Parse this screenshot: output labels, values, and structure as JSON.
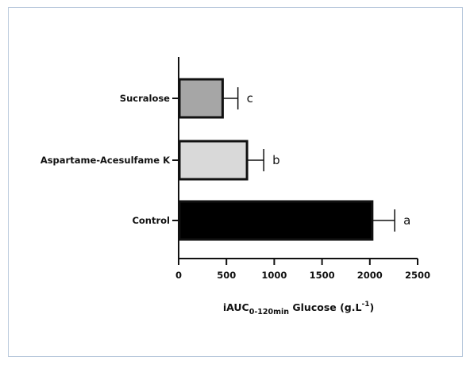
{
  "chart_data": {
    "type": "bar",
    "orientation": "horizontal",
    "categories": [
      "Sucralose",
      "Aspartame-Acesulfame K",
      "Control"
    ],
    "values": [
      460,
      715,
      2025
    ],
    "errors": [
      160,
      175,
      235
    ],
    "letters": [
      "c",
      "b",
      "a"
    ],
    "colors": [
      "#a6a6a6",
      "#d9d9d9",
      "#000000"
    ],
    "xlim": [
      0,
      2500
    ],
    "xticks": [
      0,
      500,
      1000,
      1500,
      2000,
      2500
    ],
    "xlabel": {
      "prefix": "iAUC",
      "subscript": "0-120min",
      "middle": " Glucose (g.L",
      "superscript": "-1",
      "suffix": ")"
    },
    "grid": false,
    "legend": false
  }
}
